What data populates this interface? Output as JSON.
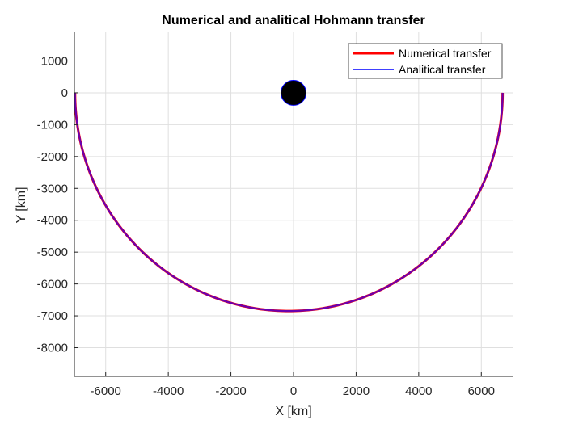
{
  "chart_data": {
    "type": "line",
    "title": "Numerical and analitical Hohmann transfer",
    "xlabel": "X [km]",
    "ylabel": "Y [km]",
    "xlim": [
      -7000,
      7000
    ],
    "ylim": [
      -8900,
      1900
    ],
    "xticks": [
      -6000,
      -4000,
      -2000,
      0,
      2000,
      4000,
      6000
    ],
    "yticks": [
      1000,
      0,
      -1000,
      -2000,
      -3000,
      -4000,
      -5000,
      -6000,
      -7000,
      -8000
    ],
    "grid": true,
    "legend_position": "top-right",
    "series": [
      {
        "name": "Numerical transfer",
        "color": "#ff0000",
        "center_x": -150,
        "semi_major_x": 6830,
        "semi_minor_y": 6850,
        "theta_range_deg": [
          0,
          180
        ],
        "half": "lower"
      },
      {
        "name": "Analitical transfer",
        "color": "#0000ff",
        "center_x": -150,
        "semi_major_x": 6830,
        "semi_minor_y": 6850,
        "theta_range_deg": [
          0,
          180
        ],
        "half": "lower"
      }
    ],
    "central_body": {
      "x": 0,
      "y": 0,
      "radius": 400,
      "fill": "#000000",
      "edge": "#0000ff"
    },
    "plot_line_color": "#6a00b0"
  }
}
